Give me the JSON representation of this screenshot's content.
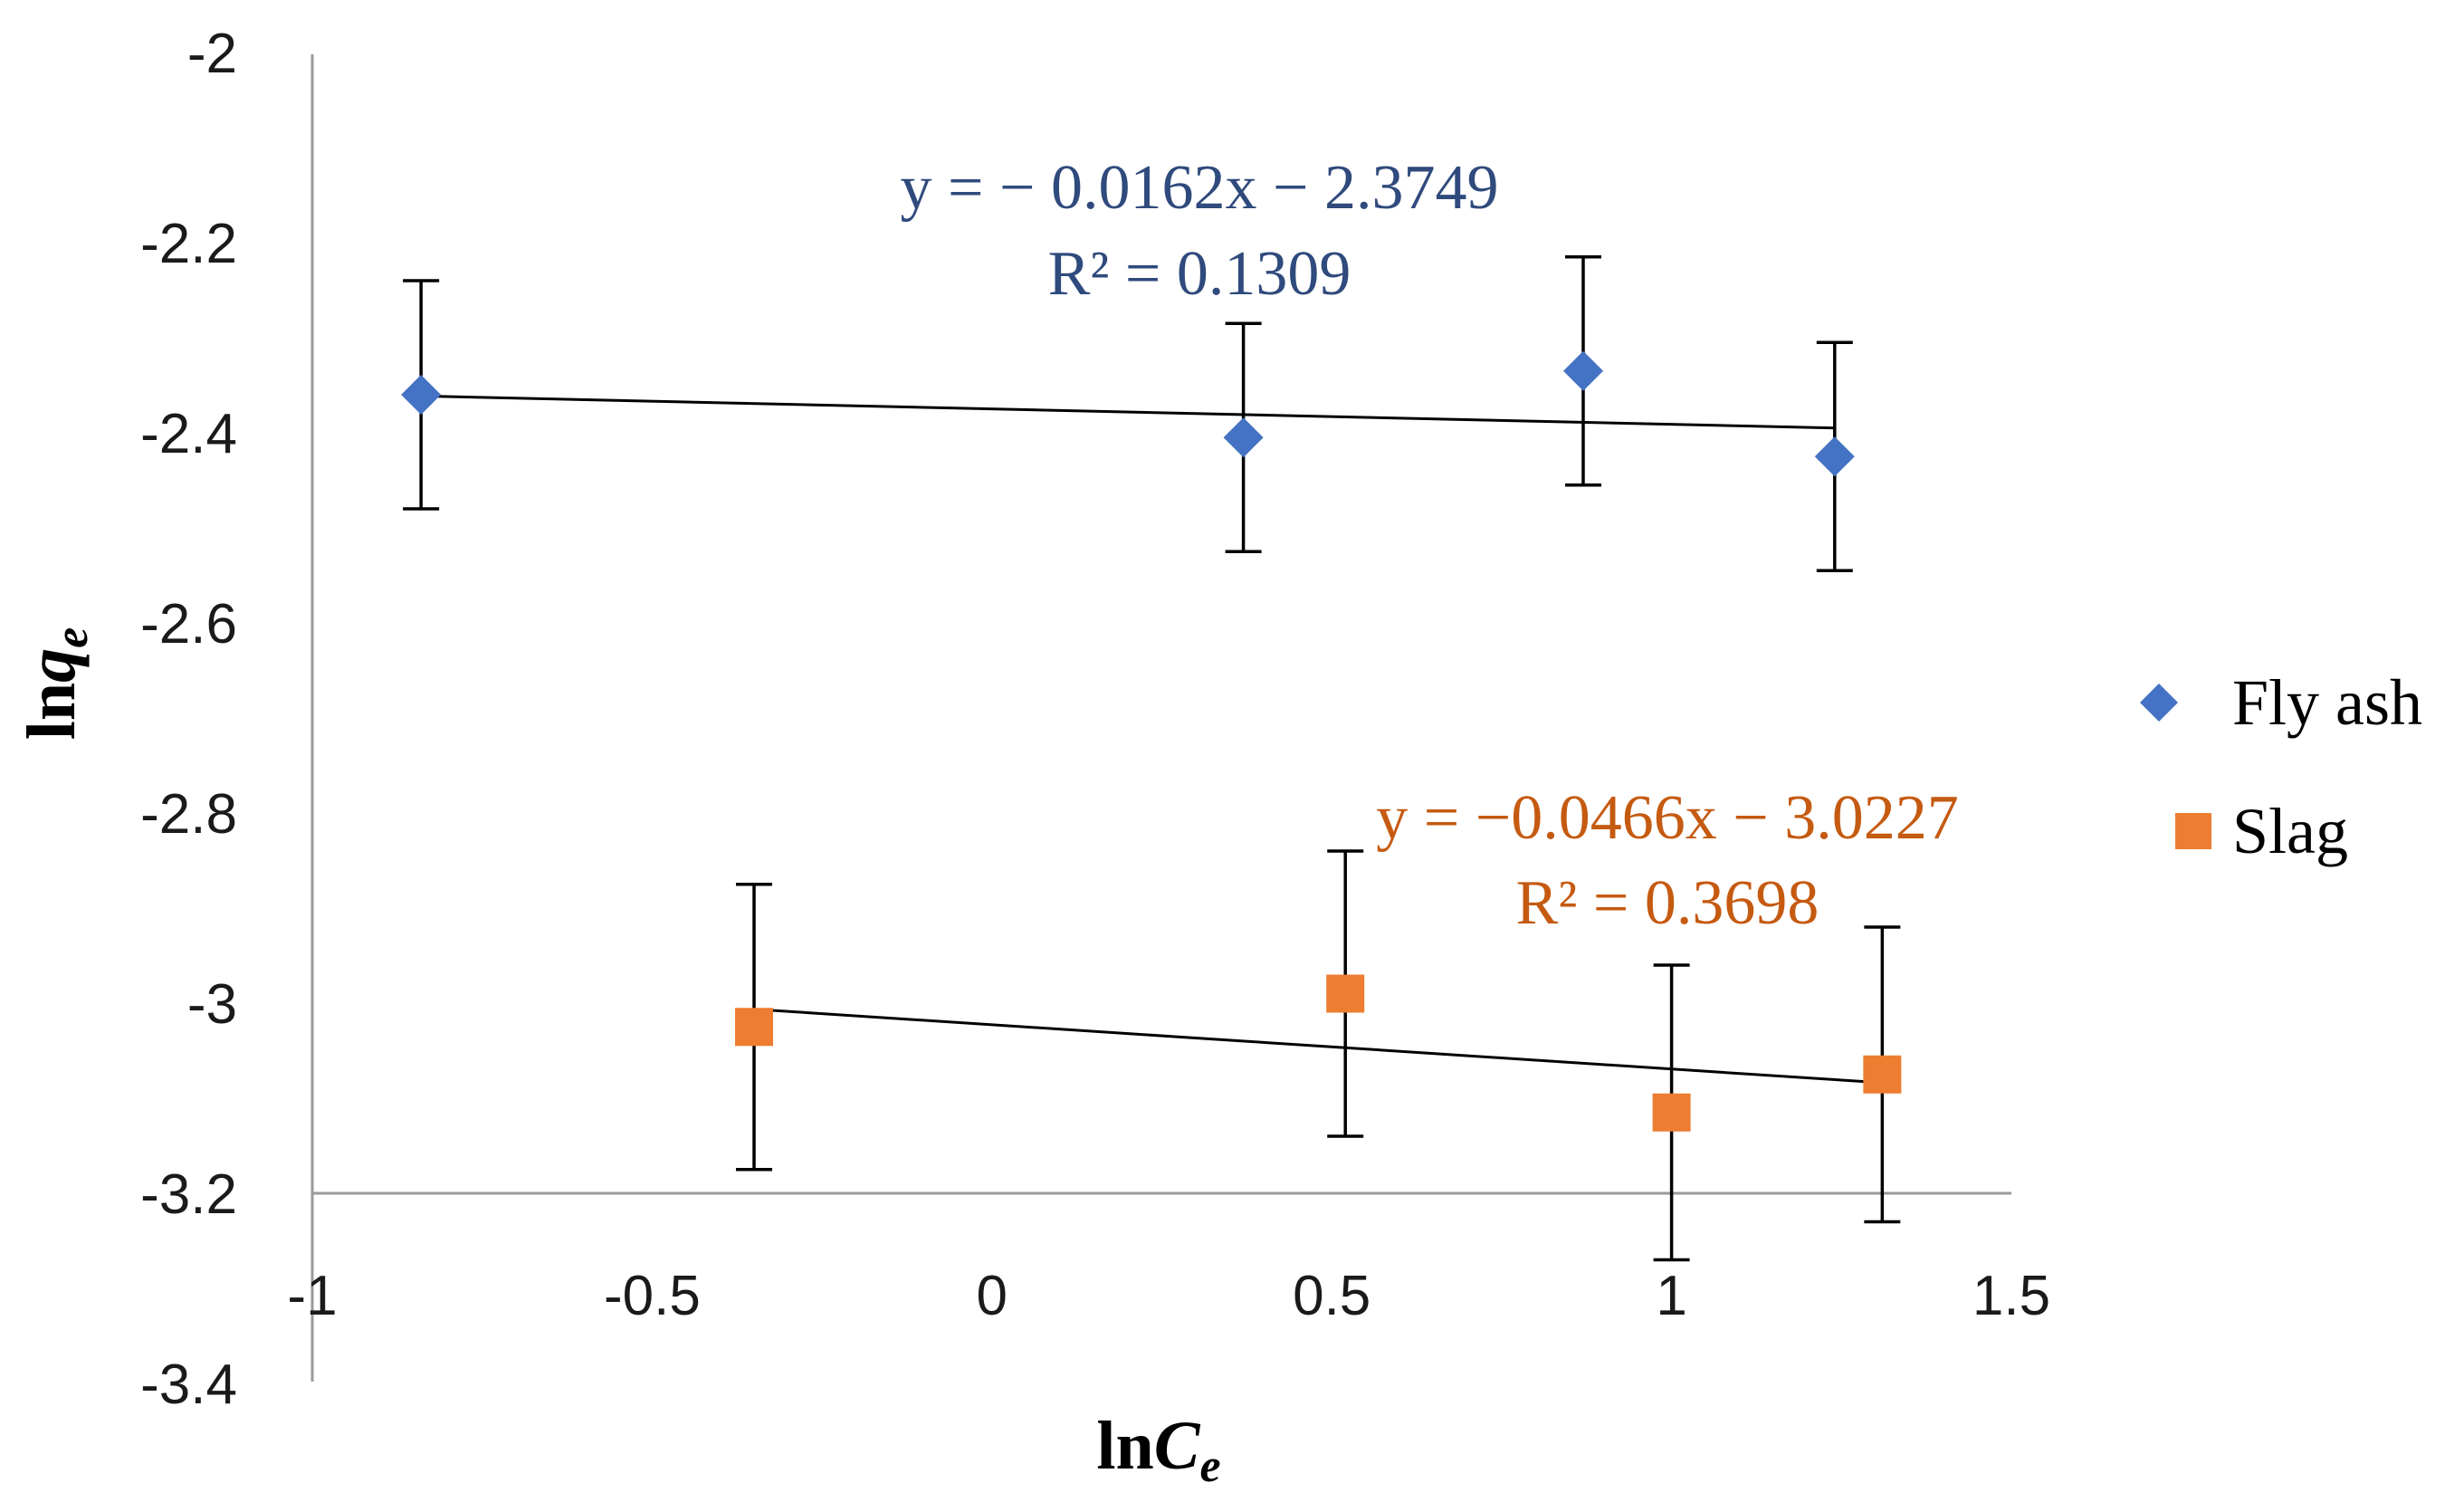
{
  "chart_data": {
    "type": "scatter",
    "xlabel": "lnCe",
    "xlabel_main": "ln",
    "xlabel_var": "C",
    "xlabel_sub": "e",
    "ylabel": "lnqe",
    "ylabel_main": "ln",
    "ylabel_var": "q",
    "ylabel_sub": "e",
    "xlim": [
      -1,
      1.5
    ],
    "ylim": [
      -3.4,
      -2
    ],
    "x_axis_crosses_y_at": -3.2,
    "xticks": [
      -1,
      -0.5,
      0,
      0.5,
      1,
      1.5
    ],
    "xtick_labels": [
      "-1",
      "-0.5",
      "0",
      "0.5",
      "1",
      "1.5"
    ],
    "yticks": [
      -2,
      -2.2,
      -2.4,
      -2.6,
      -2.8,
      -3,
      -3.2,
      -3.4
    ],
    "ytick_labels": [
      "-2",
      "-2.2",
      "-2.4",
      "-2.6",
      "-2.8",
      "-3",
      "-3.2",
      "-3.4"
    ],
    "grid": false,
    "legend_position": "right",
    "series": [
      {
        "name": "Fly ash",
        "marker": "diamond",
        "color": "#4472C4",
        "x": [
          -0.84,
          0.37,
          0.87,
          1.24
        ],
        "y": [
          -2.36,
          -2.405,
          -2.335,
          -2.425
        ],
        "error": [
          0.12,
          0.12,
          0.12,
          0.12
        ],
        "trendline": {
          "slope": -0.0162,
          "intercept": -2.3749,
          "x_range": [
            -0.84,
            1.24
          ]
        },
        "equation_line1": "y = − 0.0162x − 2.3749",
        "equation_line2": "R² = 0.1309",
        "equation_color": "#2F4A7C"
      },
      {
        "name": "Slag",
        "marker": "square",
        "color": "#ED7D31",
        "x": [
          -0.35,
          0.52,
          1.0,
          1.31
        ],
        "y": [
          -3.025,
          -2.99,
          -3.115,
          -3.075
        ],
        "error": [
          0.15,
          0.15,
          0.155,
          0.155
        ],
        "trendline": {
          "slope": -0.0466,
          "intercept": -3.0227,
          "x_range": [
            -0.35,
            1.31
          ]
        },
        "equation_line1": "y = −0.0466x − 3.0227",
        "equation_line2": "R² = 0.3698",
        "equation_color": "#C55A11"
      }
    ]
  }
}
